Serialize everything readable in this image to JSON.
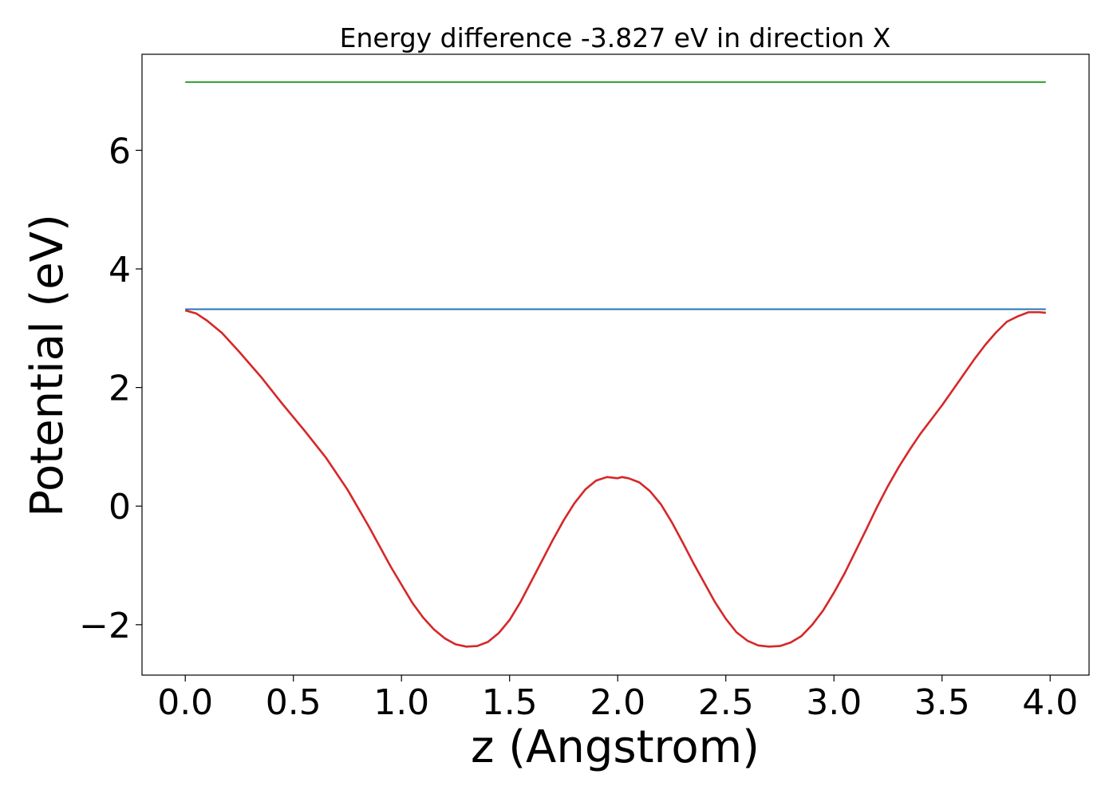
{
  "chart_data": {
    "type": "line",
    "title": "Energy difference -3.827 eV in direction X",
    "xlabel": "z (Angstrom)",
    "ylabel": "Potential (eV)",
    "xlim": [
      -0.2,
      4.18
    ],
    "ylim": [
      -2.85,
      7.62
    ],
    "x_ticks": [
      0.0,
      0.5,
      1.0,
      1.5,
      2.0,
      2.5,
      3.0,
      3.5,
      4.0
    ],
    "x_tick_labels": [
      "0.0",
      "0.5",
      "1.0",
      "1.5",
      "2.0",
      "2.5",
      "3.0",
      "3.5",
      "4.0"
    ],
    "y_ticks": [
      -2,
      0,
      2,
      4,
      6
    ],
    "y_tick_labels": [
      "−2",
      "0",
      "2",
      "4",
      "6"
    ],
    "grid": false,
    "series": [
      {
        "color": "#2ca02c",
        "x": [
          0.0,
          3.98
        ],
        "y": [
          7.15,
          7.15
        ]
      },
      {
        "color": "#1f77b4",
        "x": [
          0.0,
          3.98
        ],
        "y": [
          3.32,
          3.32
        ]
      },
      {
        "color": "#d62728",
        "x": [
          0.0,
          0.05,
          0.1,
          0.17,
          0.25,
          0.35,
          0.45,
          0.55,
          0.65,
          0.75,
          0.85,
          0.95,
          1.05,
          1.1,
          1.15,
          1.2,
          1.25,
          1.3,
          1.35,
          1.4,
          1.45,
          1.5,
          1.55,
          1.6,
          1.65,
          1.7,
          1.75,
          1.8,
          1.85,
          1.9,
          1.95,
          2.0,
          2.02,
          2.05,
          2.1,
          2.15,
          2.2,
          2.25,
          2.3,
          2.35,
          2.4,
          2.45,
          2.5,
          2.55,
          2.6,
          2.65,
          2.7,
          2.75,
          2.8,
          2.85,
          2.9,
          2.95,
          3.0,
          3.05,
          3.1,
          3.15,
          3.2,
          3.25,
          3.3,
          3.35,
          3.4,
          3.45,
          3.5,
          3.55,
          3.6,
          3.65,
          3.7,
          3.75,
          3.8,
          3.85,
          3.9,
          3.95,
          3.98
        ],
        "y": [
          3.3,
          3.25,
          3.13,
          2.92,
          2.6,
          2.18,
          1.72,
          1.28,
          0.82,
          0.28,
          -0.35,
          -1.02,
          -1.63,
          -1.88,
          -2.08,
          -2.23,
          -2.33,
          -2.37,
          -2.36,
          -2.29,
          -2.14,
          -1.92,
          -1.62,
          -1.27,
          -0.92,
          -0.57,
          -0.24,
          0.05,
          0.28,
          0.43,
          0.49,
          0.47,
          0.49,
          0.47,
          0.4,
          0.25,
          0.03,
          -0.27,
          -0.61,
          -0.96,
          -1.29,
          -1.62,
          -1.9,
          -2.13,
          -2.27,
          -2.35,
          -2.37,
          -2.36,
          -2.3,
          -2.19,
          -2.0,
          -1.76,
          -1.46,
          -1.13,
          -0.76,
          -0.39,
          -0.01,
          0.34,
          0.66,
          0.95,
          1.22,
          1.46,
          1.7,
          1.96,
          2.22,
          2.48,
          2.72,
          2.93,
          3.11,
          3.2,
          3.27,
          3.27,
          3.26
        ]
      }
    ]
  }
}
